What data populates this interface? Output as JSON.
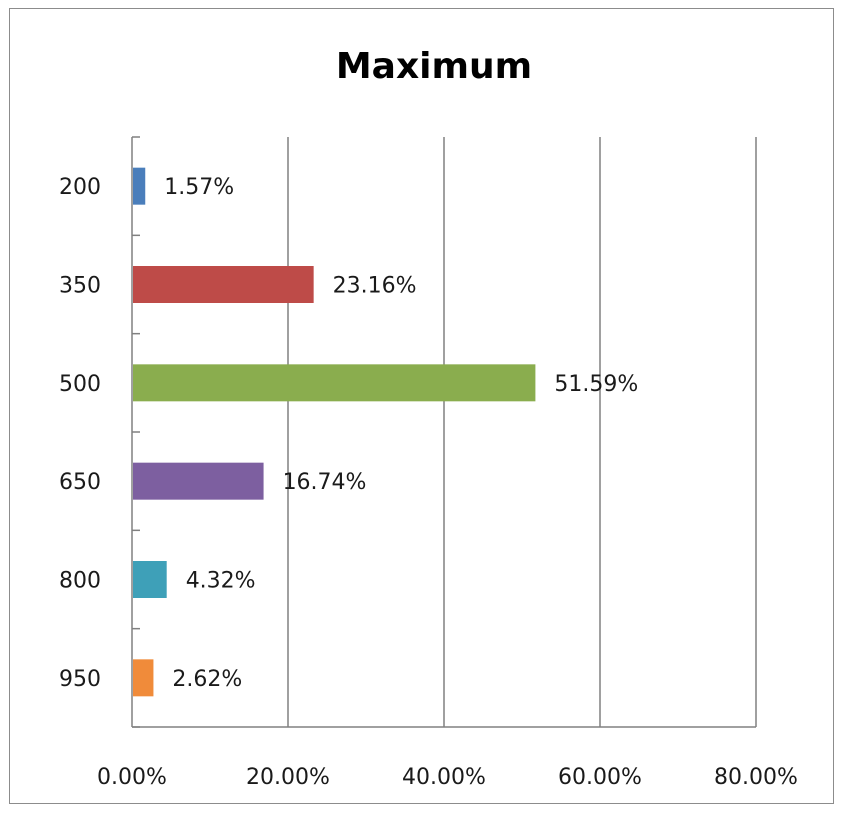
{
  "chart_data": {
    "type": "bar",
    "orientation": "horizontal",
    "title": "Maximum",
    "xlabel": "",
    "ylabel": "",
    "categories": [
      "200",
      "350",
      "500",
      "650",
      "800",
      "950"
    ],
    "values": [
      1.57,
      23.16,
      51.59,
      16.74,
      4.32,
      2.62
    ],
    "data_labels": [
      "1.57%",
      "23.16%",
      "51.59%",
      "16.74%",
      "4.32%",
      "2.62%"
    ],
    "bar_colors": [
      "#4a7ebb",
      "#be4b48",
      "#8aad4e",
      "#7d5fa0",
      "#3ea0b8",
      "#f08b3a"
    ],
    "x_ticks": [
      0,
      20,
      40,
      60,
      80
    ],
    "x_tick_labels": [
      "0.00%",
      "20.00%",
      "40.00%",
      "60.00%",
      "80.00%"
    ],
    "xlim": [
      0,
      80
    ],
    "grid": "vertical",
    "legend": "none"
  }
}
